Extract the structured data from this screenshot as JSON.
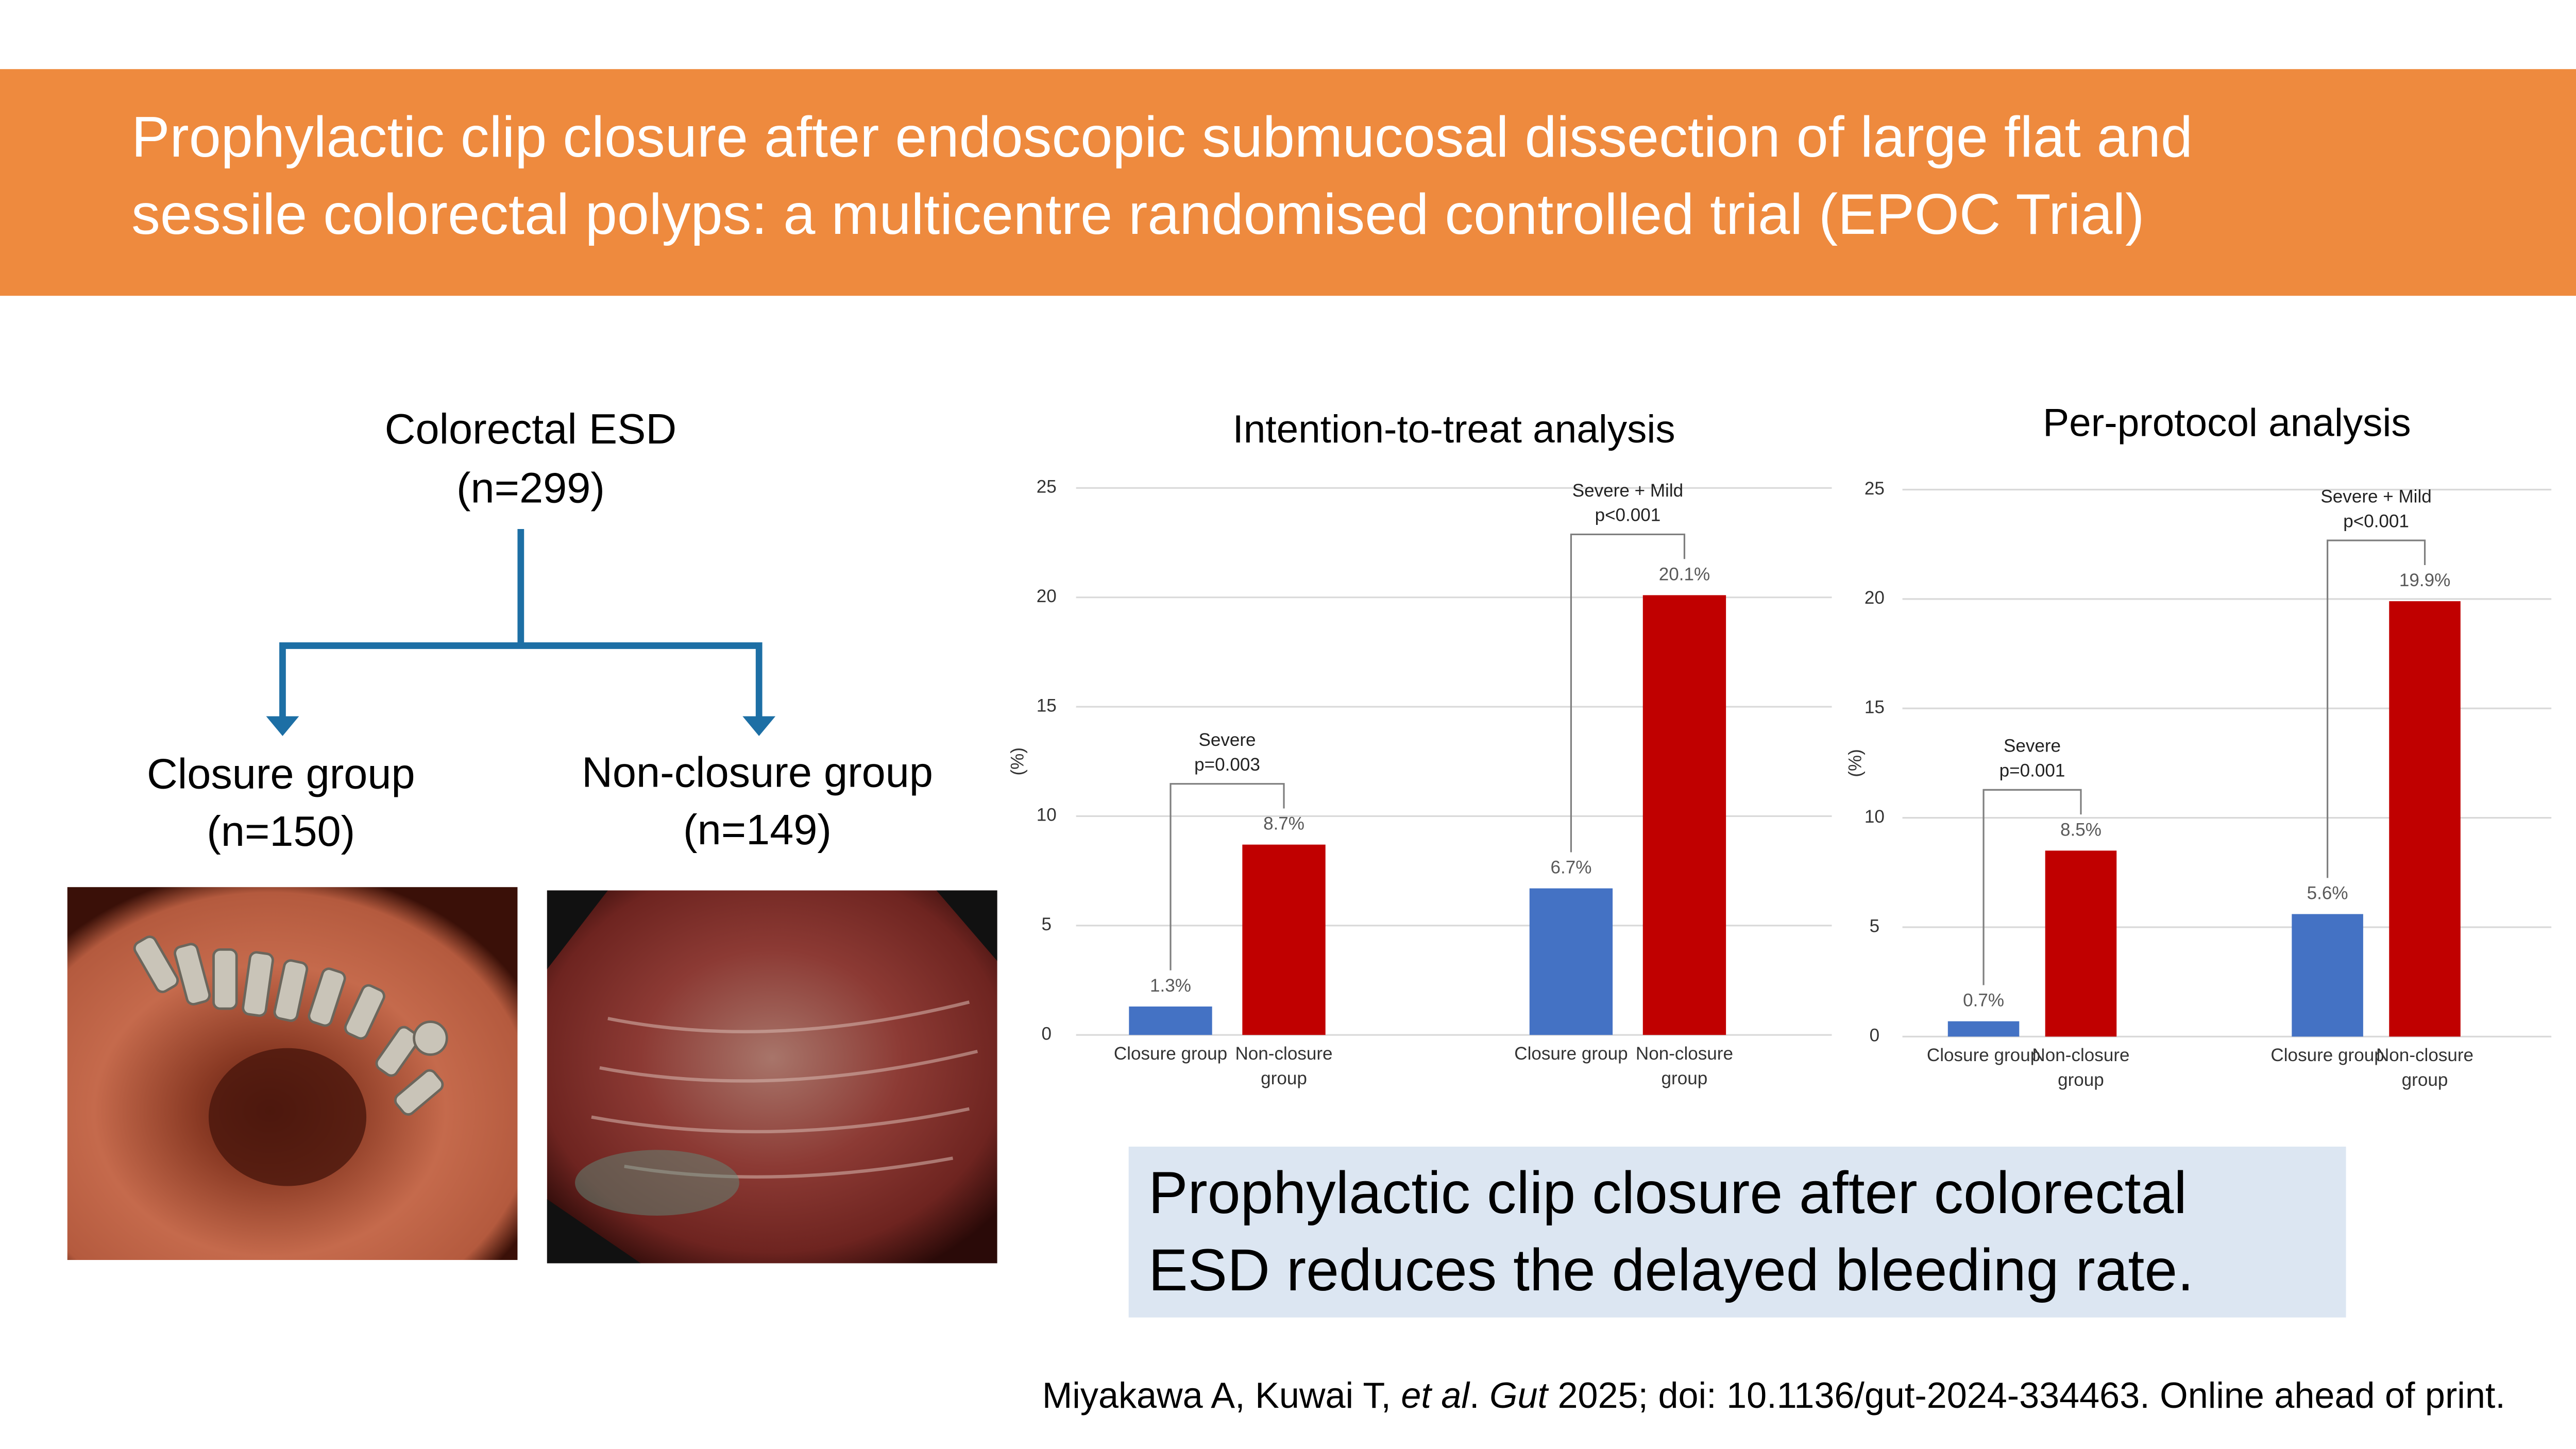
{
  "header": {
    "title_lines": [
      "Prophylactic clip closure after endoscopic submucosal dissection of large flat and",
      "sessile colorectal polyps: a multicentre randomised controlled trial (EPOC Trial)"
    ]
  },
  "flowchart": {
    "root": {
      "label": "Colorectal ESD",
      "n": "(n=299)"
    },
    "branches": [
      {
        "label": "Closure group",
        "n": "(n=150)"
      },
      {
        "label": "Non-closure group",
        "n": "(n=149)"
      }
    ]
  },
  "chart_data": [
    {
      "type": "bar",
      "title": "Intention-to-treat analysis",
      "ylabel": "(%)",
      "categories": [
        "Closure group",
        "Non-closure group",
        "Closure group",
        "Non-closure group"
      ],
      "values": [
        1.3,
        8.7,
        6.7,
        20.1
      ],
      "value_labels": [
        "1.3%",
        "8.7%",
        "6.7%",
        "20.1%"
      ],
      "colors": [
        "#4472c4",
        "#c00000",
        "#4472c4",
        "#c00000"
      ],
      "ylim": [
        0,
        25
      ],
      "yticks": [
        0,
        5,
        10,
        15,
        20,
        25
      ],
      "grid": true,
      "annotations": [
        {
          "lines": [
            "Severe",
            "p=0.003"
          ]
        },
        {
          "lines": [
            "Severe + Mild",
            "p<0.001"
          ]
        }
      ]
    },
    {
      "type": "bar",
      "title": "Per-protocol analysis",
      "ylabel": "(%)",
      "categories": [
        "Closure group",
        "Non-closure group",
        "Closure group",
        "Non-closure group"
      ],
      "values": [
        0.7,
        8.5,
        5.6,
        19.9
      ],
      "value_labels": [
        "0.7%",
        "8.5%",
        "5.6%",
        "19.9%"
      ],
      "colors": [
        "#4472c4",
        "#c00000",
        "#4472c4",
        "#c00000"
      ],
      "ylim": [
        0,
        25
      ],
      "yticks": [
        0,
        5,
        10,
        15,
        20,
        25
      ],
      "grid": true,
      "annotations": [
        {
          "lines": [
            "Severe",
            "p=0.001"
          ]
        },
        {
          "lines": [
            "Severe + Mild",
            "p<0.001"
          ]
        }
      ]
    }
  ],
  "conclusion": {
    "lines": [
      "Prophylactic clip closure after colorectal",
      "ESD reduces the delayed bleeding rate."
    ]
  },
  "citation": {
    "segments": [
      {
        "text": "Miyakawa A, Kuwai T, ",
        "italic": false
      },
      {
        "text": "et al",
        "italic": true
      },
      {
        "text": ". ",
        "italic": false
      },
      {
        "text": "Gut",
        "italic": true
      },
      {
        "text": " 2025; doi: 10.1136/gut-2024-334463. Online ahead of print.",
        "italic": false
      }
    ]
  }
}
